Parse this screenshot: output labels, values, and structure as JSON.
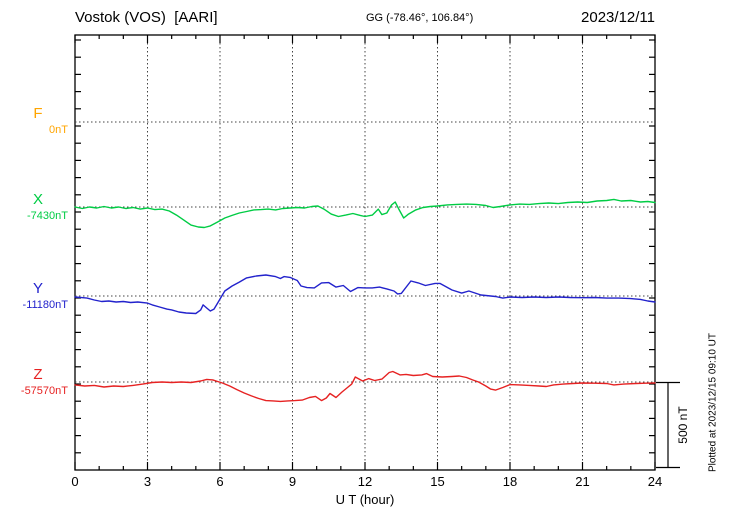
{
  "header": {
    "station": "Vostok (VOS)  [AARI]",
    "coords": "GG (-78.46°, 106.84°)",
    "date": "2023/12/11"
  },
  "axis": {
    "xlabel": "U T (hour)",
    "ticks": [
      "0",
      "3",
      "6",
      "9",
      "12",
      "15",
      "18",
      "21",
      "24"
    ]
  },
  "scale_bar_label": "500 nT",
  "plotted_at": "Plotted at 2023/12/15 09:10 UT",
  "chart_data": {
    "type": "line",
    "title": "Vostok (VOS) [AARI] magnetogram",
    "xlabel": "U T (hour)",
    "x_range": [
      0,
      24
    ],
    "x_ticks_major": [
      0,
      3,
      6,
      9,
      12,
      15,
      18,
      21,
      24
    ],
    "x_minor_tick_hours": 1,
    "y_minor_tick_nT": 100,
    "baseline_separation_nT": 500,
    "grid": "dotted vertical at 3h intervals, dotted horizontal at each component baseline",
    "legend_position": "left baselines",
    "series": [
      {
        "name": "F",
        "baseline_label": "0nT",
        "color": "#FFA500",
        "t": [],
        "nT": []
      },
      {
        "name": "X",
        "baseline_label": "-7430nT",
        "color": "#00CC44",
        "t": [
          0,
          0.3,
          0.6,
          0.9,
          1.2,
          1.5,
          1.8,
          2.1,
          2.4,
          2.7,
          3,
          3.3,
          3.6,
          3.9,
          4.2,
          4.5,
          4.8,
          5.1,
          5.35,
          5.6,
          5.9,
          6.2,
          6.5,
          6.8,
          7.1,
          7.4,
          7.7,
          8,
          8.3,
          8.6,
          8.9,
          9.2,
          9.5,
          9.8,
          10.05,
          10.3,
          10.6,
          10.9,
          11.2,
          11.5,
          11.8,
          12,
          12.3,
          12.55,
          12.7,
          12.9,
          13.1,
          13.25,
          13.4,
          13.6,
          13.8,
          14.1,
          14.4,
          14.7,
          15,
          15.4,
          15.8,
          16.2,
          16.6,
          17,
          17.3,
          17.6,
          18,
          18.4,
          18.8,
          19.2,
          19.6,
          20,
          20.4,
          20.8,
          21.2,
          21.6,
          22,
          22.3,
          22.6,
          23,
          23.4,
          23.7,
          24
        ],
        "nT": [
          0,
          -9,
          0,
          -6,
          3,
          -6,
          0,
          -9,
          -3,
          -12,
          -6,
          -15,
          -12,
          -23,
          -47,
          -76,
          -105,
          -116,
          -119,
          -110,
          -87,
          -64,
          -49,
          -35,
          -26,
          -17,
          -15,
          -12,
          -17,
          -9,
          -6,
          -3,
          -6,
          3,
          6,
          -12,
          -41,
          -55,
          -47,
          -38,
          -49,
          -55,
          -47,
          -12,
          -44,
          -35,
          12,
          29,
          -12,
          -64,
          -41,
          -17,
          -3,
          3,
          6,
          12,
          15,
          17,
          15,
          9,
          -3,
          3,
          12,
          17,
          15,
          20,
          23,
          20,
          26,
          29,
          26,
          35,
          38,
          44,
          35,
          38,
          29,
          32,
          26
        ]
      },
      {
        "name": "Y",
        "baseline_label": "-11180nT",
        "color": "#2222CC",
        "t": [
          0,
          0.5,
          0.8,
          1.1,
          1.4,
          1.7,
          2,
          2.3,
          2.6,
          3,
          3.2,
          3.5,
          3.8,
          4,
          4.3,
          4.6,
          5,
          5.2,
          5.3,
          5.45,
          5.6,
          5.75,
          5.9,
          6.05,
          6.2,
          6.5,
          6.8,
          7.1,
          7.5,
          7.9,
          8.3,
          8.5,
          8.65,
          8.9,
          9.05,
          9.2,
          9.35,
          9.6,
          9.9,
          10.2,
          10.5,
          10.8,
          11.1,
          11.4,
          11.7,
          12,
          12.3,
          12.6,
          12.9,
          13.2,
          13.35,
          13.5,
          13.9,
          14.2,
          14.5,
          14.9,
          15.1,
          15.6,
          16,
          16.3,
          16.8,
          17.4,
          17.7,
          18,
          18.5,
          19,
          19.5,
          20,
          20.5,
          21,
          21.5,
          22,
          22.5,
          23,
          23.4,
          23.7,
          24
        ],
        "nT": [
          -6,
          -12,
          -23,
          -32,
          -29,
          -35,
          -32,
          -38,
          -35,
          -41,
          -52,
          -64,
          -76,
          -81,
          -93,
          -99,
          -102,
          -81,
          -52,
          -70,
          -87,
          -76,
          -41,
          -6,
          29,
          58,
          81,
          105,
          116,
          122,
          113,
          102,
          113,
          108,
          99,
          90,
          58,
          49,
          47,
          76,
          78,
          52,
          61,
          26,
          49,
          47,
          47,
          52,
          41,
          29,
          12,
          15,
          87,
          76,
          61,
          73,
          73,
          35,
          17,
          29,
          6,
          -3,
          -12,
          -6,
          -9,
          -6,
          -9,
          -6,
          -9,
          -10,
          -9,
          -12,
          -12,
          -15,
          -20,
          -29,
          -35
        ]
      },
      {
        "name": "Z",
        "baseline_label": "-57570nT",
        "color": "#E62222",
        "t": [
          0,
          0.4,
          0.8,
          1.2,
          1.6,
          2,
          2.4,
          2.8,
          3.2,
          3.6,
          4,
          4.4,
          4.8,
          5.2,
          5.45,
          5.7,
          5.9,
          6.1,
          6.4,
          6.7,
          7,
          7.3,
          7.6,
          7.9,
          8.2,
          8.5,
          8.8,
          9.1,
          9.4,
          9.7,
          9.95,
          10.2,
          10.4,
          10.55,
          10.8,
          11.05,
          11.25,
          11.45,
          11.6,
          11.9,
          12.15,
          12.4,
          12.7,
          13,
          13.15,
          13.45,
          13.7,
          14,
          14.35,
          14.55,
          14.8,
          15.2,
          15.6,
          15.9,
          16.2,
          16.45,
          16.7,
          17,
          17.2,
          17.4,
          17.7,
          18,
          18.4,
          18.8,
          19.2,
          19.5,
          19.8,
          20.2,
          20.6,
          21,
          21.5,
          22,
          22.3,
          22.7,
          23.2,
          23.6,
          24
        ],
        "nT": [
          -17,
          -23,
          -20,
          -29,
          -23,
          -26,
          -20,
          -12,
          -3,
          0,
          -3,
          0,
          -3,
          6,
          15,
          12,
          3,
          -6,
          -23,
          -44,
          -64,
          -81,
          -96,
          -108,
          -110,
          -113,
          -110,
          -108,
          -105,
          -90,
          -84,
          -108,
          -93,
          -67,
          -90,
          -58,
          -35,
          -12,
          29,
          6,
          20,
          9,
          17,
          55,
          61,
          41,
          44,
          38,
          41,
          49,
          32,
          29,
          32,
          35,
          26,
          12,
          0,
          -23,
          -41,
          -47,
          -32,
          -15,
          -17,
          -20,
          -23,
          -26,
          -17,
          -12,
          -9,
          -6,
          -7,
          -9,
          -17,
          -12,
          -9,
          -7,
          -6
        ]
      }
    ],
    "scale_bar": {
      "label": "500 nT",
      "span_nT": 500
    },
    "annotation": "Plotted at 2023/12/15 09:10 UT"
  }
}
